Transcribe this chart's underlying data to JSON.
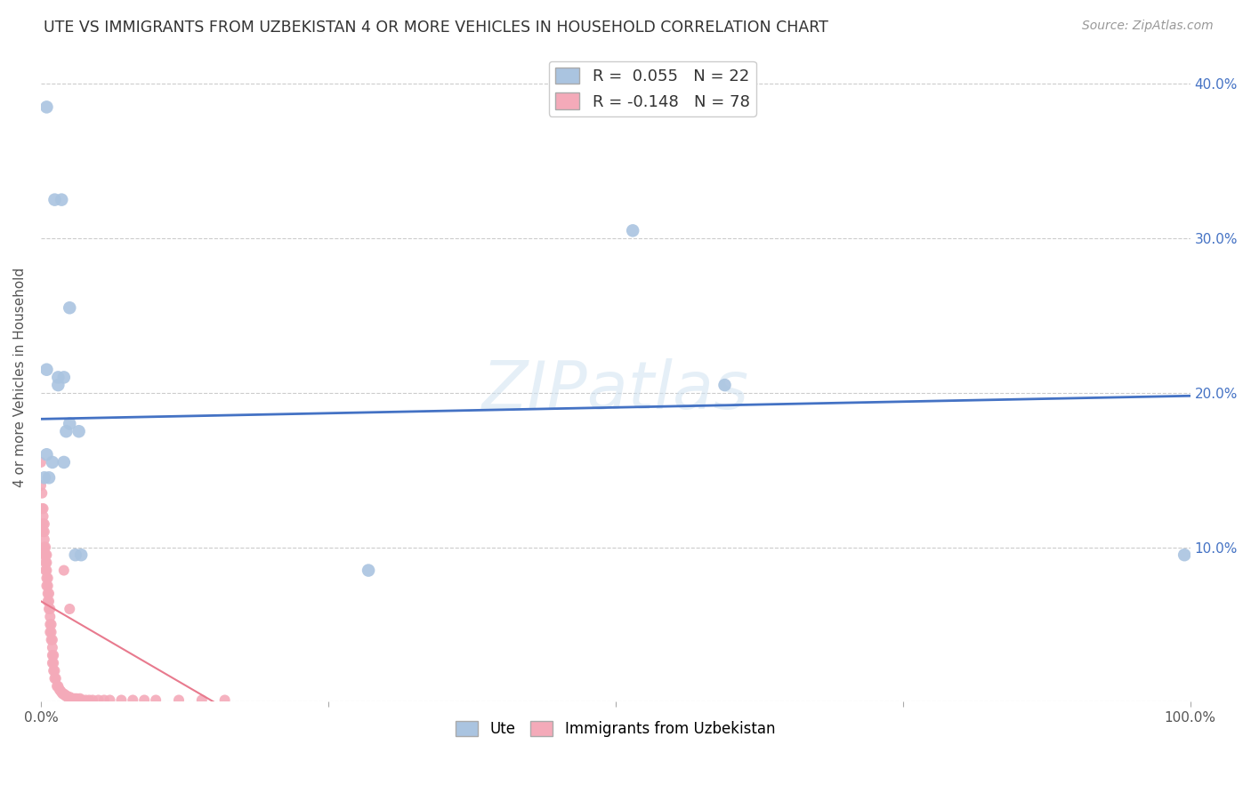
{
  "title": "UTE VS IMMIGRANTS FROM UZBEKISTAN 4 OR MORE VEHICLES IN HOUSEHOLD CORRELATION CHART",
  "source": "Source: ZipAtlas.com",
  "ylabel": "4 or more Vehicles in Household",
  "xlim": [
    0,
    1.0
  ],
  "ylim": [
    0,
    0.42
  ],
  "xticks": [
    0.0,
    0.25,
    0.5,
    0.75,
    1.0
  ],
  "xticklabels": [
    "0.0%",
    "",
    "",
    "",
    "100.0%"
  ],
  "yticks": [
    0.0,
    0.1,
    0.2,
    0.3,
    0.4
  ],
  "yticklabels": [
    "",
    "10.0%",
    "20.0%",
    "30.0%",
    "40.0%"
  ],
  "legend_ute_R": "0.055",
  "legend_ute_N": "22",
  "legend_uzb_R": "-0.148",
  "legend_uzb_N": "78",
  "ute_color": "#aac4e0",
  "uzb_color": "#f4aab9",
  "ute_line_color": "#4472c4",
  "uzb_line_color": "#e87a8e",
  "watermark": "ZIPatlas",
  "background_color": "#ffffff",
  "grid_color": "#cccccc",
  "ute_x": [
    0.005,
    0.012,
    0.018,
    0.005,
    0.015,
    0.025,
    0.015,
    0.02,
    0.025,
    0.005,
    0.01,
    0.02,
    0.003,
    0.007,
    0.595,
    0.515,
    0.995,
    0.285,
    0.033,
    0.022,
    0.03,
    0.035
  ],
  "ute_y": [
    0.385,
    0.325,
    0.325,
    0.215,
    0.205,
    0.255,
    0.21,
    0.21,
    0.18,
    0.16,
    0.155,
    0.155,
    0.145,
    0.145,
    0.205,
    0.305,
    0.095,
    0.085,
    0.175,
    0.175,
    0.095,
    0.095
  ],
  "uzb_x": [
    0.0,
    0.0,
    0.001,
    0.001,
    0.001,
    0.002,
    0.002,
    0.002,
    0.002,
    0.003,
    0.003,
    0.003,
    0.003,
    0.003,
    0.004,
    0.004,
    0.004,
    0.004,
    0.005,
    0.005,
    0.005,
    0.005,
    0.005,
    0.006,
    0.006,
    0.006,
    0.006,
    0.007,
    0.007,
    0.007,
    0.008,
    0.008,
    0.008,
    0.008,
    0.009,
    0.009,
    0.009,
    0.01,
    0.01,
    0.01,
    0.01,
    0.011,
    0.011,
    0.011,
    0.012,
    0.012,
    0.013,
    0.014,
    0.015,
    0.016,
    0.017,
    0.018,
    0.019,
    0.02,
    0.021,
    0.022,
    0.023,
    0.025,
    0.027,
    0.029,
    0.031,
    0.034,
    0.036,
    0.039,
    0.042,
    0.045,
    0.05,
    0.055,
    0.06,
    0.07,
    0.08,
    0.09,
    0.1,
    0.12,
    0.14,
    0.16,
    0.02,
    0.025
  ],
  "uzb_y": [
    0.155,
    0.14,
    0.135,
    0.125,
    0.115,
    0.125,
    0.12,
    0.115,
    0.11,
    0.115,
    0.11,
    0.105,
    0.1,
    0.095,
    0.1,
    0.095,
    0.09,
    0.085,
    0.095,
    0.09,
    0.085,
    0.08,
    0.075,
    0.08,
    0.075,
    0.07,
    0.065,
    0.07,
    0.065,
    0.06,
    0.06,
    0.055,
    0.05,
    0.045,
    0.05,
    0.045,
    0.04,
    0.04,
    0.035,
    0.03,
    0.025,
    0.03,
    0.025,
    0.02,
    0.02,
    0.015,
    0.015,
    0.01,
    0.01,
    0.008,
    0.007,
    0.006,
    0.005,
    0.005,
    0.004,
    0.004,
    0.003,
    0.003,
    0.002,
    0.002,
    0.002,
    0.002,
    0.001,
    0.001,
    0.001,
    0.001,
    0.001,
    0.001,
    0.001,
    0.001,
    0.001,
    0.001,
    0.001,
    0.001,
    0.001,
    0.001,
    0.085,
    0.06
  ],
  "ute_line_x0": 0.0,
  "ute_line_x1": 1.0,
  "ute_line_y0": 0.183,
  "ute_line_y1": 0.198,
  "uzb_line_x0": 0.0,
  "uzb_line_x1": 0.15,
  "uzb_line_y0": 0.065,
  "uzb_line_y1": 0.0
}
